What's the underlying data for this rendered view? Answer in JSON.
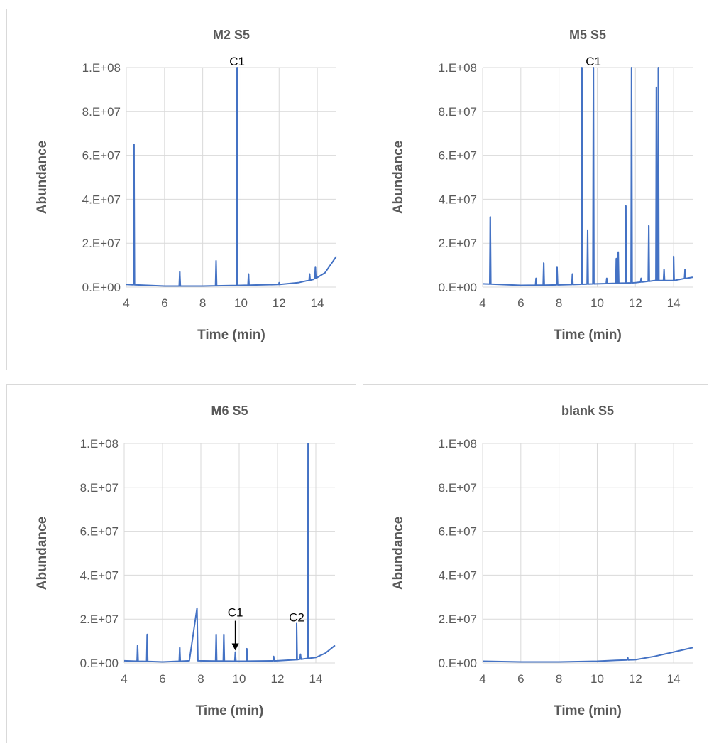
{
  "colors": {
    "series": "#4472c4",
    "grid": "#d9d9d9",
    "text": "#595959",
    "annotation": "#000000"
  },
  "chart_data": [
    {
      "type": "line",
      "title": "M2 S5",
      "xlabel": "Time (min)",
      "ylabel": "Abundance",
      "xlim": [
        4,
        15
      ],
      "ylim": [
        0,
        100000000
      ],
      "xticks": [
        "4",
        "6",
        "8",
        "10",
        "12",
        "14"
      ],
      "yticks": [
        "0.E+00",
        "2.E+07",
        "4.E+07",
        "6.E+07",
        "8.E+07",
        "1.E+08"
      ],
      "grid": true,
      "baseline": [
        [
          4.0,
          1200000
        ],
        [
          6.0,
          500000
        ],
        [
          8.0,
          500000
        ],
        [
          10.0,
          800000
        ],
        [
          12.0,
          1200000
        ],
        [
          13.0,
          2000000
        ],
        [
          13.8,
          3500000
        ],
        [
          14.4,
          6500000
        ],
        [
          15.0,
          14000000
        ]
      ],
      "peaks": [
        [
          4.4,
          65000000
        ],
        [
          6.8,
          7000000
        ],
        [
          8.7,
          12000000
        ],
        [
          9.8,
          100000000
        ],
        [
          10.4,
          6000000
        ],
        [
          12.0,
          2000000
        ],
        [
          13.6,
          6000000
        ],
        [
          13.9,
          9000000
        ]
      ],
      "annotations": [
        {
          "text": "C1",
          "x": 9.8,
          "y": 100000000,
          "arrow": false
        }
      ]
    },
    {
      "type": "line",
      "title": "M5 S5",
      "xlabel": "Time (min)",
      "ylabel": "Abundance",
      "xlim": [
        4,
        15
      ],
      "ylim": [
        0,
        100000000
      ],
      "xticks": [
        "4",
        "6",
        "8",
        "10",
        "12",
        "14"
      ],
      "yticks": [
        "0.E+00",
        "2.E+07",
        "4.E+07",
        "6.E+07",
        "8.E+07",
        "1.E+08"
      ],
      "grid": true,
      "baseline": [
        [
          4.0,
          1500000
        ],
        [
          6.0,
          800000
        ],
        [
          8.0,
          1000000
        ],
        [
          10.0,
          1500000
        ],
        [
          12.0,
          2000000
        ],
        [
          13.0,
          3000000
        ],
        [
          14.0,
          3000000
        ],
        [
          15.0,
          4500000
        ]
      ],
      "peaks": [
        [
          4.4,
          32000000
        ],
        [
          6.8,
          4000000
        ],
        [
          7.2,
          11000000
        ],
        [
          7.9,
          9000000
        ],
        [
          8.7,
          6000000
        ],
        [
          9.2,
          100000000
        ],
        [
          9.5,
          26000000
        ],
        [
          9.8,
          100000000
        ],
        [
          10.5,
          4000000
        ],
        [
          11.0,
          13000000
        ],
        [
          11.1,
          16000000
        ],
        [
          11.5,
          37000000
        ],
        [
          11.8,
          100000000
        ],
        [
          12.3,
          4000000
        ],
        [
          12.7,
          28000000
        ],
        [
          13.1,
          91000000
        ],
        [
          13.2,
          100000000
        ],
        [
          13.5,
          8000000
        ],
        [
          14.0,
          14000000
        ],
        [
          14.6,
          8000000
        ]
      ],
      "annotations": [
        {
          "text": "C1",
          "x": 9.8,
          "y": 100000000,
          "arrow": false
        }
      ]
    },
    {
      "type": "line",
      "title": "M6 S5",
      "xlabel": "Time (min)",
      "ylabel": "Abundance",
      "xlim": [
        4,
        15
      ],
      "ylim": [
        0,
        100000000
      ],
      "xticks": [
        "4",
        "6",
        "8",
        "10",
        "12",
        "14"
      ],
      "yticks": [
        "0.E+00",
        "2.E+07",
        "4.E+07",
        "6.E+07",
        "8.E+07",
        "1.E+08"
      ],
      "grid": true,
      "baseline": [
        [
          4.0,
          1000000
        ],
        [
          6.0,
          500000
        ],
        [
          7.4,
          1000000
        ],
        [
          7.8,
          25000000
        ],
        [
          7.85,
          1000000
        ],
        [
          10.0,
          800000
        ],
        [
          12.0,
          1000000
        ],
        [
          13.0,
          1500000
        ],
        [
          14.0,
          2500000
        ],
        [
          14.5,
          4500000
        ],
        [
          15.0,
          8000000
        ]
      ],
      "peaks": [
        [
          4.7,
          8000000
        ],
        [
          5.2,
          13000000
        ],
        [
          6.9,
          7000000
        ],
        [
          8.8,
          13000000
        ],
        [
          9.2,
          13000000
        ],
        [
          9.8,
          5000000
        ],
        [
          10.4,
          6500000
        ],
        [
          11.8,
          3000000
        ],
        [
          13.0,
          18000000
        ],
        [
          13.2,
          4000000
        ],
        [
          13.6,
          100000000
        ]
      ],
      "annotations": [
        {
          "text": "C1",
          "x": 9.8,
          "y": 5000000,
          "arrow": true
        },
        {
          "text": "C2",
          "x": 13.0,
          "y": 18000000,
          "arrow": false
        }
      ]
    },
    {
      "type": "line",
      "title": "blank S5",
      "xlabel": "Time (min)",
      "ylabel": "Abundance",
      "xlim": [
        4,
        15
      ],
      "ylim": [
        0,
        100000000
      ],
      "xticks": [
        "4",
        "6",
        "8",
        "10",
        "12",
        "14"
      ],
      "yticks": [
        "0.E+00",
        "2.E+07",
        "4.E+07",
        "6.E+07",
        "8.E+07",
        "1.E+08"
      ],
      "grid": true,
      "baseline": [
        [
          4.0,
          800000
        ],
        [
          6.0,
          500000
        ],
        [
          8.0,
          500000
        ],
        [
          10.0,
          800000
        ],
        [
          11.0,
          1200000
        ],
        [
          12.0,
          1500000
        ],
        [
          13.0,
          3000000
        ],
        [
          14.0,
          5000000
        ],
        [
          15.0,
          7000000
        ]
      ],
      "peaks": [
        [
          11.6,
          2500000
        ]
      ],
      "annotations": []
    }
  ]
}
